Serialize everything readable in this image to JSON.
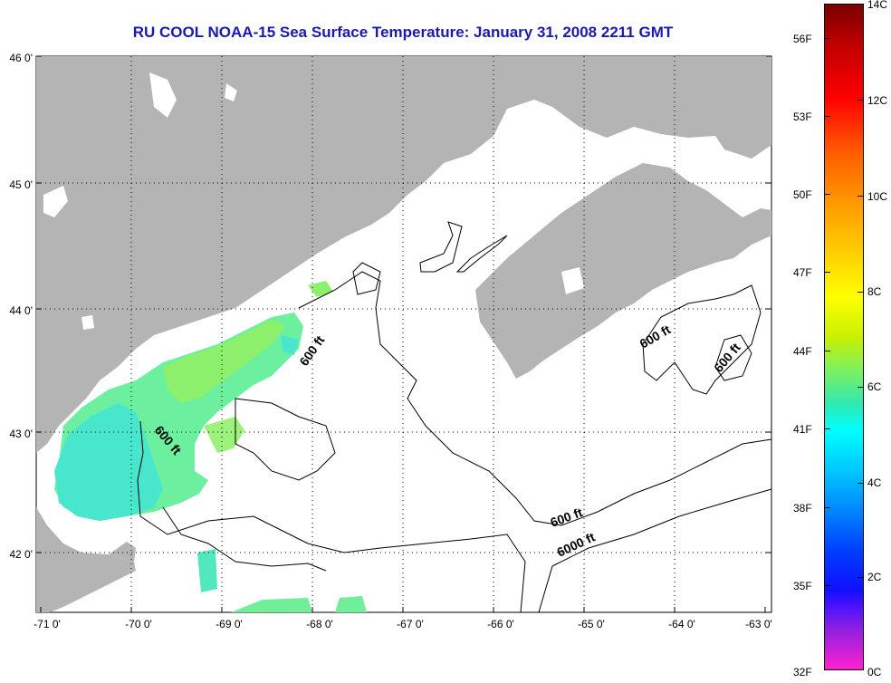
{
  "title": "RU COOL  NOAA-15  Sea Surface Temperature:  January 31, 2008 2211 GMT",
  "lat_labels": [
    "46 0'",
    "45 0'",
    "44 0'",
    "43 0'",
    "42 0'"
  ],
  "lon_labels": [
    "-71 0'",
    "-70 0'",
    "-69 0'",
    "-68 0'",
    "-67 0'",
    "-66 0'",
    "-65 0'",
    "-64 0'",
    "-63 0'"
  ],
  "contour_labels": [
    "600 ft",
    "600 ft",
    "600 ft",
    "600 ft",
    "600 ft",
    "6000 ft"
  ],
  "colorbar": {
    "celsius": [
      "14C",
      "12C",
      "10C",
      "8C",
      "6C",
      "4C",
      "2C",
      "0C"
    ],
    "fahrenheit": [
      "56F",
      "53F",
      "50F",
      "47F",
      "44F",
      "41F",
      "38F",
      "35F",
      "32F"
    ]
  },
  "colors": {
    "land": "#b4b4b4",
    "title": "#1a1ab0"
  }
}
